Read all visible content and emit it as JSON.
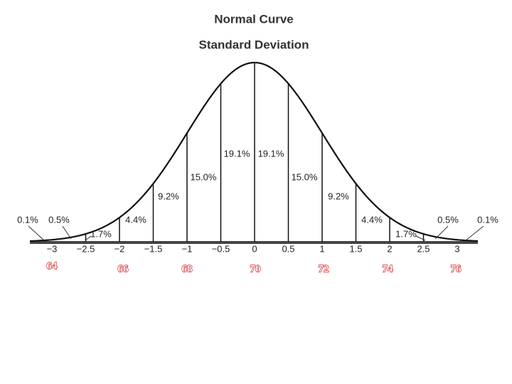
{
  "title": "Normal Curve",
  "subtitle": "Standard Deviation",
  "axis_labels": [
    "−3",
    "−2.5",
    "−2",
    "−1.5",
    "−1",
    "−0.5",
    "0",
    "0.5",
    "1",
    "1.5",
    "2",
    "2.5",
    "3"
  ],
  "segment_labels": [
    "0.1%",
    "0.5%",
    "1.7%",
    "4.4%",
    "9.2%",
    "15.0%",
    "19.1%",
    "19.1%",
    "15.0%",
    "9.2%",
    "4.4%",
    "1.7%",
    "0.5%",
    "0.1%"
  ],
  "score_labels": [
    "64",
    "66",
    "68",
    "70",
    "72",
    "74",
    "76"
  ]
}
